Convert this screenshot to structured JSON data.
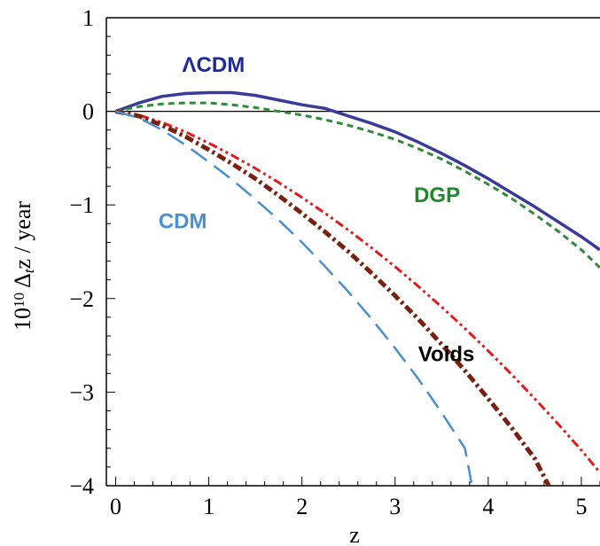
{
  "chart_data": {
    "type": "line",
    "xlabel": "z",
    "ylabel": "10",
    "ylabel_sup": "10",
    "ylabel_rest": " Δ",
    "ylabel_sub": "t",
    "ylabel_tail": "z / year",
    "xlim": [
      -0.1,
      5.2
    ],
    "ylim": [
      -4,
      1
    ],
    "xticks": [
      0,
      1,
      2,
      3,
      4,
      5
    ],
    "xtick_labels": [
      "0",
      "1",
      "2",
      "3",
      "4",
      "5"
    ],
    "yticks": [
      1,
      0,
      -1,
      -2,
      -3,
      -4
    ],
    "ytick_labels": [
      "1",
      "0",
      "−1",
      "−2",
      "−3",
      "−4"
    ],
    "grid": false,
    "series": [
      {
        "name": "ΛCDM",
        "label": "ΛCDM",
        "color": "#3a3a9a",
        "dash": "solid",
        "x": [
          0,
          0.25,
          0.5,
          0.75,
          1.0,
          1.25,
          1.5,
          1.75,
          2.0,
          2.25,
          2.5,
          2.75,
          3.0,
          3.25,
          3.5,
          3.75,
          4.0,
          4.25,
          4.5,
          4.75,
          5.0,
          5.2
        ],
        "y": [
          0,
          0.09,
          0.16,
          0.19,
          0.2,
          0.2,
          0.17,
          0.12,
          0.07,
          0.03,
          -0.05,
          -0.13,
          -0.22,
          -0.33,
          -0.45,
          -0.58,
          -0.72,
          -0.87,
          -1.02,
          -1.18,
          -1.34,
          -1.48
        ]
      },
      {
        "name": "DGP",
        "label": "DGP",
        "color": "#2e8b3a",
        "dash": "short",
        "x": [
          0,
          0.25,
          0.5,
          0.75,
          1.0,
          1.25,
          1.5,
          1.75,
          2.0,
          2.25,
          2.5,
          2.75,
          3.0,
          3.25,
          3.5,
          3.75,
          4.0,
          4.25,
          4.5,
          4.75,
          5.0,
          5.2
        ],
        "y": [
          0,
          0.05,
          0.08,
          0.09,
          0.09,
          0.07,
          0.04,
          0.0,
          -0.04,
          -0.09,
          -0.15,
          -0.22,
          -0.3,
          -0.4,
          -0.51,
          -0.64,
          -0.78,
          -0.93,
          -1.1,
          -1.28,
          -1.48,
          -1.67
        ]
      },
      {
        "name": "Voids",
        "label": "Voids",
        "color": "#e21a1a",
        "dash": "dashdotdot",
        "x": [
          0,
          0.25,
          0.5,
          0.75,
          1.0,
          1.25,
          1.5,
          1.75,
          2.0,
          2.25,
          2.5,
          2.75,
          3.0,
          3.25,
          3.5,
          3.75,
          4.0,
          4.25,
          4.5,
          4.75,
          5.0,
          5.2
        ],
        "y": [
          0,
          -0.04,
          -0.12,
          -0.22,
          -0.34,
          -0.47,
          -0.61,
          -0.76,
          -0.92,
          -1.09,
          -1.27,
          -1.46,
          -1.66,
          -1.87,
          -2.09,
          -2.32,
          -2.56,
          -2.81,
          -3.07,
          -3.34,
          -3.62,
          -3.86
        ]
      },
      {
        "name": "Voids",
        "label": "",
        "color": "#7a2010",
        "dash": "dashdot",
        "x": [
          0,
          0.25,
          0.5,
          0.75,
          1.0,
          1.25,
          1.5,
          1.75,
          2.0,
          2.25,
          2.5,
          2.75,
          3.0,
          3.25,
          3.5,
          3.75,
          4.0,
          4.25,
          4.5,
          4.65
        ],
        "y": [
          0,
          -0.05,
          -0.15,
          -0.27,
          -0.41,
          -0.56,
          -0.72,
          -0.9,
          -1.09,
          -1.29,
          -1.5,
          -1.73,
          -1.97,
          -2.22,
          -2.49,
          -2.77,
          -3.07,
          -3.38,
          -3.71,
          -4.0
        ]
      },
      {
        "name": "CDM",
        "label": "CDM",
        "color": "#4a90d0",
        "dash": "long",
        "x": [
          0,
          0.25,
          0.5,
          0.75,
          1.0,
          1.25,
          1.5,
          1.75,
          2.0,
          2.25,
          2.5,
          2.75,
          3.0,
          3.25,
          3.5,
          3.75,
          3.82
        ],
        "y": [
          0,
          -0.07,
          -0.2,
          -0.36,
          -0.54,
          -0.73,
          -0.94,
          -1.16,
          -1.4,
          -1.66,
          -1.93,
          -2.22,
          -2.53,
          -2.86,
          -3.22,
          -3.6,
          -3.97
        ]
      }
    ],
    "annotations": [
      {
        "text": "ΛCDM",
        "x": 1.05,
        "y": 0.42,
        "color": "#1f2a9a"
      },
      {
        "text": "DGP",
        "x": 3.45,
        "y": -0.97,
        "color": "#1f8a2a"
      },
      {
        "text": "CDM",
        "x": 0.72,
        "y": -1.25,
        "color": "#4a90d0"
      },
      {
        "text": "Voids",
        "x": 3.55,
        "y": -2.67,
        "color": "#000000"
      }
    ]
  }
}
